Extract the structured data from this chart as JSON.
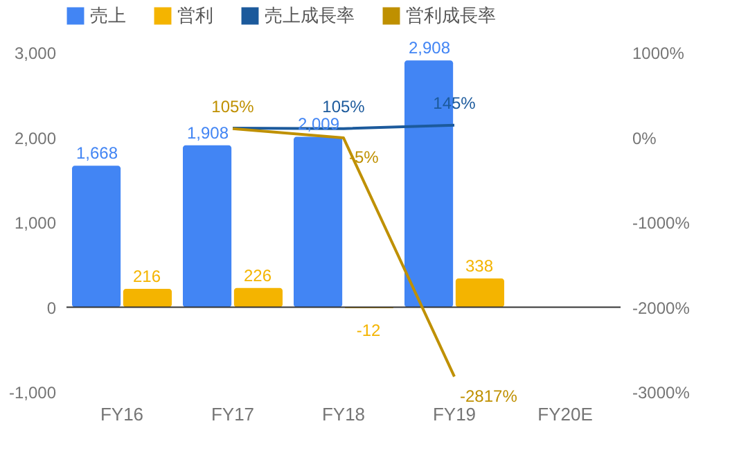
{
  "chart_data": {
    "type": "bar",
    "categories": [
      "FY16",
      "FY17",
      "FY18",
      "FY19",
      "FY20E"
    ],
    "series": [
      {
        "name": "売上",
        "color": "#4285f4",
        "values": [
          1668,
          1908,
          2009,
          2908,
          null
        ],
        "value_labels": [
          "1,668",
          "1,908",
          "2,009",
          "2,908",
          null
        ]
      },
      {
        "name": "営利",
        "color": "#f4b400",
        "values": [
          216,
          226,
          -12,
          338,
          null
        ],
        "value_labels": [
          "216",
          "226",
          "-12",
          "338",
          null
        ]
      },
      {
        "name": "売上成長率",
        "type": "line",
        "axis": "y2",
        "color": "#1c5a9c",
        "values": [
          null,
          110,
          105,
          145,
          null
        ],
        "value_labels": [
          null,
          null,
          "105%",
          "145%",
          null
        ]
      },
      {
        "name": "営利成長率",
        "type": "line",
        "axis": "y2",
        "color": "#bf9000",
        "values": [
          null,
          105,
          -5,
          -2817,
          null
        ],
        "value_labels": [
          null,
          "105%",
          "-5%",
          "-2817%",
          null
        ]
      }
    ],
    "ylim": [
      -1000,
      3000
    ],
    "yticks": [
      {
        "value": -1000,
        "label": "-1,000"
      },
      0,
      {
        "value": 1000,
        "label": "1,000"
      },
      {
        "value": 2000,
        "label": "2,000"
      },
      {
        "value": 3000,
        "label": "3,000"
      }
    ],
    "y2lim": [
      -3000,
      1000
    ],
    "y2ticks": [
      {
        "value": -3000,
        "label": "-3000%"
      },
      {
        "value": -2000,
        "label": "-2000%"
      },
      {
        "value": -1000,
        "label": "-1000%"
      },
      {
        "value": 0,
        "label": "0%"
      },
      {
        "value": 1000,
        "label": "1000%"
      }
    ],
    "ref_lines": [
      {
        "axis": "y",
        "value": 0,
        "color": "#333333"
      }
    ],
    "grid": false,
    "legend": "top",
    "marker": "none",
    "line_style": "solid"
  }
}
